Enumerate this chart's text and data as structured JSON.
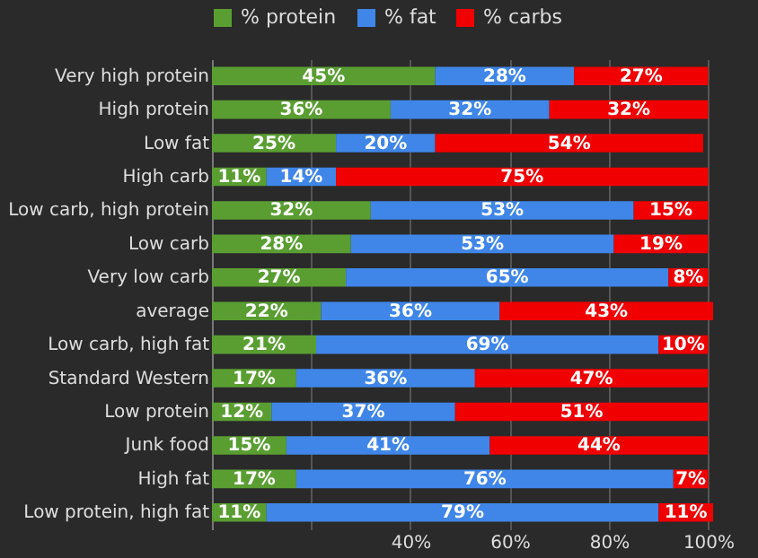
{
  "chart_data": {
    "type": "bar",
    "orientation": "horizontal",
    "stacked": true,
    "categories": [
      "Very high protein",
      "High protein",
      "Low fat",
      "High carb",
      "Low carb, high protein",
      "Low carb",
      "Very low carb",
      "average",
      "Low carb, high fat",
      "Standard Western",
      "Low protein",
      "Junk food",
      "High fat",
      "Low protein, high fat"
    ],
    "series": [
      {
        "name": "% protein",
        "color": "#5a9e32",
        "values": [
          45,
          36,
          25,
          11,
          32,
          28,
          27,
          22,
          21,
          17,
          12,
          15,
          17,
          11
        ],
        "value_labels": [
          "45%",
          "36%",
          "25%",
          "11%",
          "32%",
          "28%",
          "27%",
          "22%",
          "21%",
          "17%",
          "12%",
          "15%",
          "17%",
          "11%"
        ]
      },
      {
        "name": "% fat",
        "color": "#3f86e8",
        "values": [
          28,
          32,
          20,
          14,
          53,
          53,
          65,
          36,
          69,
          36,
          37,
          41,
          76,
          79
        ],
        "value_labels": [
          "28%",
          "32%",
          "20%",
          "14%",
          "53%",
          "53%",
          "65%",
          "36%",
          "69%",
          "36%",
          "37%",
          "41%",
          "76%",
          "79%"
        ]
      },
      {
        "name": "% carbs",
        "color": "#f00000",
        "values": [
          27,
          32,
          54,
          75,
          15,
          19,
          8,
          43,
          10,
          47,
          51,
          44,
          7,
          11
        ],
        "value_labels": [
          "27%",
          "32%",
          "54%",
          "75%",
          "15%",
          "19%",
          "8%",
          "43%",
          "10%",
          "47%",
          "51%",
          "44%",
          "7%",
          "11%"
        ]
      }
    ],
    "xlim": [
      0,
      101
    ],
    "xticks": [
      {
        "value": 0,
        "label": null
      },
      {
        "value": 20,
        "label": null
      },
      {
        "value": 40,
        "label": "40%"
      },
      {
        "value": 60,
        "label": "60%"
      },
      {
        "value": 80,
        "label": "80%"
      },
      {
        "value": 100,
        "label": "100%"
      }
    ],
    "grid": "x",
    "legend": "top"
  }
}
